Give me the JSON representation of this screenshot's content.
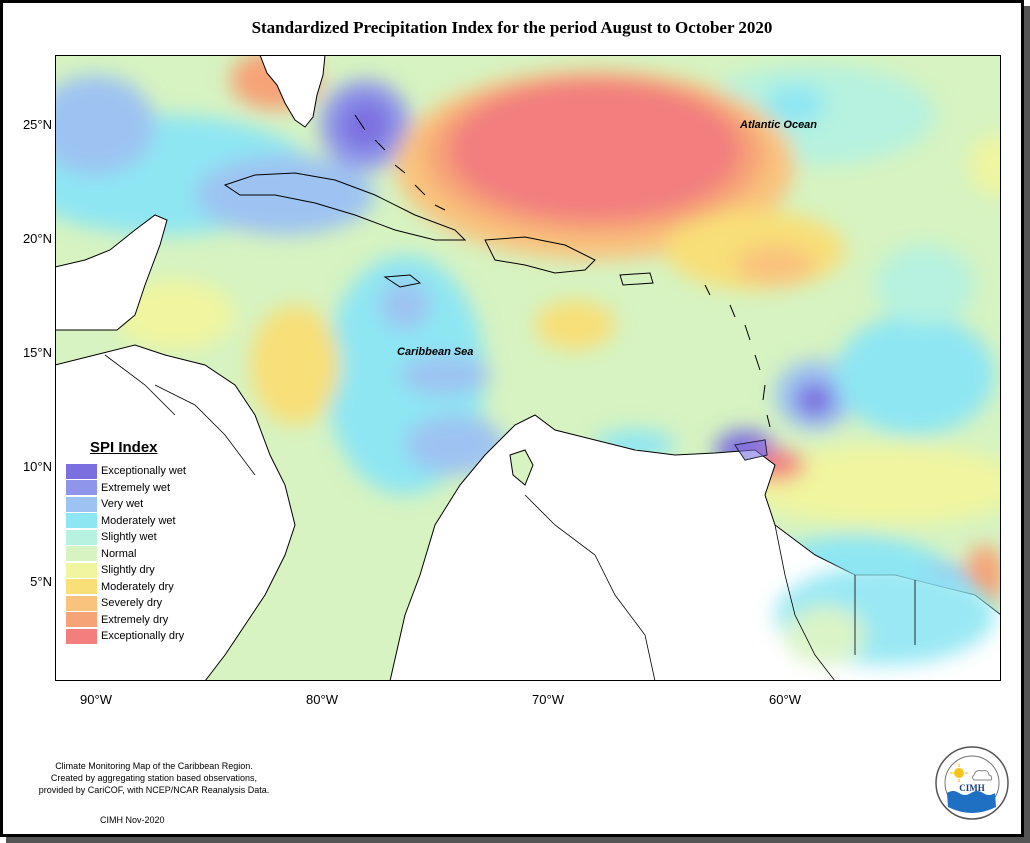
{
  "title": "Standardized Precipitation Index for the period August to October 2020",
  "map_labels": {
    "atlantic": "Atlantic Ocean",
    "caribbean": "Caribbean Sea"
  },
  "axes": {
    "lat_ticks": [
      "25°N",
      "20°N",
      "15°N",
      "10°N",
      "5°N"
    ],
    "lon_ticks": [
      "90°W",
      "80°W",
      "70°W",
      "60°W"
    ]
  },
  "legend": {
    "title": "SPI Index",
    "items": [
      {
        "label": "Exceptionally wet",
        "color": "#7b6fe0"
      },
      {
        "label": "Extremely wet",
        "color": "#8f95ea"
      },
      {
        "label": "Very wet",
        "color": "#9dc3f2"
      },
      {
        "label": "Moderately wet",
        "color": "#8ee6f3"
      },
      {
        "label": "Slightly wet",
        "color": "#b6f2df"
      },
      {
        "label": "Normal",
        "color": "#d6f3c1"
      },
      {
        "label": "Slightly dry",
        "color": "#f0f59f"
      },
      {
        "label": "Moderately dry",
        "color": "#f8df78"
      },
      {
        "label": "Severely dry",
        "color": "#f9c37d"
      },
      {
        "label": "Extremely dry",
        "color": "#f6a377"
      },
      {
        "label": "Exceptionally dry",
        "color": "#f27e7e"
      }
    ]
  },
  "footer": {
    "line1": "Climate Monitoring Map of the Caribbean Region.",
    "line2": "Created by aggregating station based observations,",
    "line3": "provided by CariCOF, with NCEP/NCAR Reanalysis Data.",
    "credit": "CIMH Nov-2020"
  },
  "logo": {
    "text": "CIMH",
    "icon": "cimh-logo-icon"
  }
}
